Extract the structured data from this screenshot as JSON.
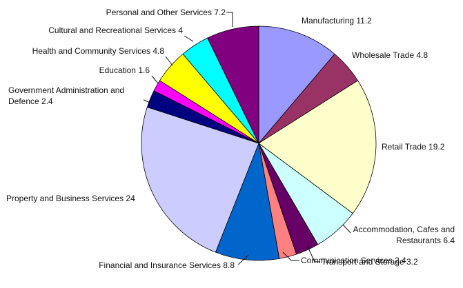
{
  "chart_data": {
    "type": "pie",
    "start_angle_deg": 0,
    "direction": "clockwise",
    "slices": [
      {
        "label": "Manufacturing 11.2",
        "name": "Manufacturing",
        "value": 11.2,
        "color": "#9999FF"
      },
      {
        "label": "Wholesale Trade 4.8",
        "name": "Wholesale Trade",
        "value": 4.8,
        "color": "#993366"
      },
      {
        "label": "Retail Trade 19.2",
        "name": "Retail Trade",
        "value": 19.2,
        "color": "#FFFFCC"
      },
      {
        "label": [
          "Accommodation, Cafes and",
          "Restaurants 6.4"
        ],
        "name": "Accommodation, Cafes and Restaurants",
        "value": 6.4,
        "color": "#CCFFFF"
      },
      {
        "label": "Transport and Storage 3.2",
        "name": "Transport and Storage",
        "value": 3.2,
        "color": "#660066"
      },
      {
        "label": "Communication Services 2.4",
        "name": "Communication Services",
        "value": 2.4,
        "color": "#FF8080"
      },
      {
        "label": "Financial and Insurance Services 8.8",
        "name": "Financial and Insurance Services",
        "value": 8.8,
        "color": "#0066CC"
      },
      {
        "label": "Property and Business Services 24",
        "name": "Property and Business Services",
        "value": 24,
        "color": "#CCCCFF"
      },
      {
        "label": [
          "Government Administration and",
          "Defence 2.4"
        ],
        "name": "Government Administration and Defence",
        "value": 2.4,
        "color": "#000080"
      },
      {
        "label": "Education 1.6",
        "name": "Education",
        "value": 1.6,
        "color": "#FF00FF"
      },
      {
        "label": "Health and Community Services 4.8",
        "name": "Health and Community Services",
        "value": 4.8,
        "color": "#FFFF00"
      },
      {
        "label": "Cultural and Recreational Services 4",
        "name": "Cultural and Recreational Services",
        "value": 4,
        "color": "#00FFFF"
      },
      {
        "label": "Personal and Other Services 7.2",
        "name": "Personal and Other Services",
        "value": 7.2,
        "color": "#800080"
      }
    ]
  }
}
